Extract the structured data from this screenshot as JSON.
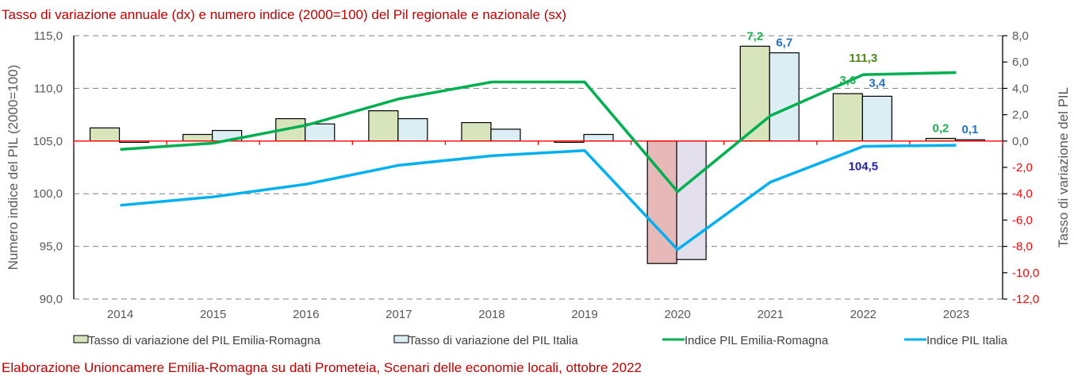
{
  "chart_data": {
    "type": "bar+line",
    "title": "Tasso di variazione annuale (dx) e numero indice (2000=100) del Pil regionale e nazionale (sx)",
    "footer": "Elaborazione Unioncamere Emilia-Romagna su dati Prometeia, Scenari delle economie locali, ottobre 2022",
    "categories": [
      "2014",
      "2015",
      "2016",
      "2017",
      "2018",
      "2019",
      "2020",
      "2021",
      "2022",
      "2023"
    ],
    "left_axis": {
      "label": "Numero indice del PIL (2000=100)",
      "range": [
        90,
        115
      ],
      "ticks": [
        "90,0",
        "95,0",
        "100,0",
        "105,0",
        "110,0",
        "115,0"
      ],
      "tick_values": [
        90,
        95,
        100,
        105,
        110,
        115
      ],
      "grid": true
    },
    "right_axis": {
      "label": "Tasso di variazione del PIL",
      "range": [
        -12,
        8
      ],
      "ticks": [
        "-12,0",
        "-10,0",
        "-8,0",
        "-6,0",
        "-4,0",
        "-2,0",
        "0,0",
        "2,0",
        "4,0",
        "6,0",
        "8,0"
      ],
      "tick_values": [
        -12,
        -10,
        -8,
        -6,
        -4,
        -2,
        0,
        2,
        4,
        6,
        8
      ],
      "negative_color": "#ff0000"
    },
    "series": [
      {
        "name": "Tasso di variazione del PIL Emilia-Romagna",
        "type": "bar",
        "axis": "right",
        "color": "#d8e4bc",
        "negative_color": "#e6b8b7",
        "values": [
          1.0,
          0.5,
          1.7,
          2.3,
          1.4,
          -0.1,
          -9.3,
          7.2,
          3.6,
          0.2
        ],
        "labels": {
          "7": "7,2",
          "8": "3,6",
          "9": "0,2"
        },
        "label_color": "#1db052"
      },
      {
        "name": "Tasso di variazione del PIL Italia",
        "type": "bar",
        "axis": "right",
        "color": "#dbeef4",
        "negative_color": "#e4dfec",
        "values": [
          -0.1,
          0.8,
          1.3,
          1.7,
          0.9,
          0.5,
          -9.0,
          6.7,
          3.4,
          0.1
        ],
        "labels": {
          "7": "6,7",
          "8": "3,4",
          "9": "0,1"
        },
        "label_color": "#2172c4"
      },
      {
        "name": "Indice PIL Emilia-Romagna",
        "type": "line",
        "axis": "left",
        "color": "#00b050",
        "values": [
          104.2,
          104.8,
          106.5,
          109.0,
          110.6,
          110.6,
          100.2,
          107.4,
          111.3,
          111.5
        ],
        "labels": {
          "8": "111,3"
        },
        "label_color": "#4e8a1a"
      },
      {
        "name": "Indice PIL Italia",
        "type": "line",
        "axis": "left",
        "color": "#00b0f0",
        "values": [
          98.9,
          99.7,
          100.9,
          102.7,
          103.6,
          104.1,
          94.7,
          101.1,
          104.5,
          104.6
        ],
        "labels": {
          "8": "104,5"
        },
        "label_color": "#2020a8"
      }
    ],
    "legend": {
      "position": "bottom",
      "entries": [
        "Tasso di variazione del PIL Emilia-Romagna",
        "Tasso di variazione del PIL Italia",
        "Indice PIL Emilia-Romagna",
        "Indice PIL Italia"
      ]
    },
    "colors": {
      "title": "#c00000",
      "zero_line": "#ff0000",
      "grid": "#808080"
    }
  }
}
